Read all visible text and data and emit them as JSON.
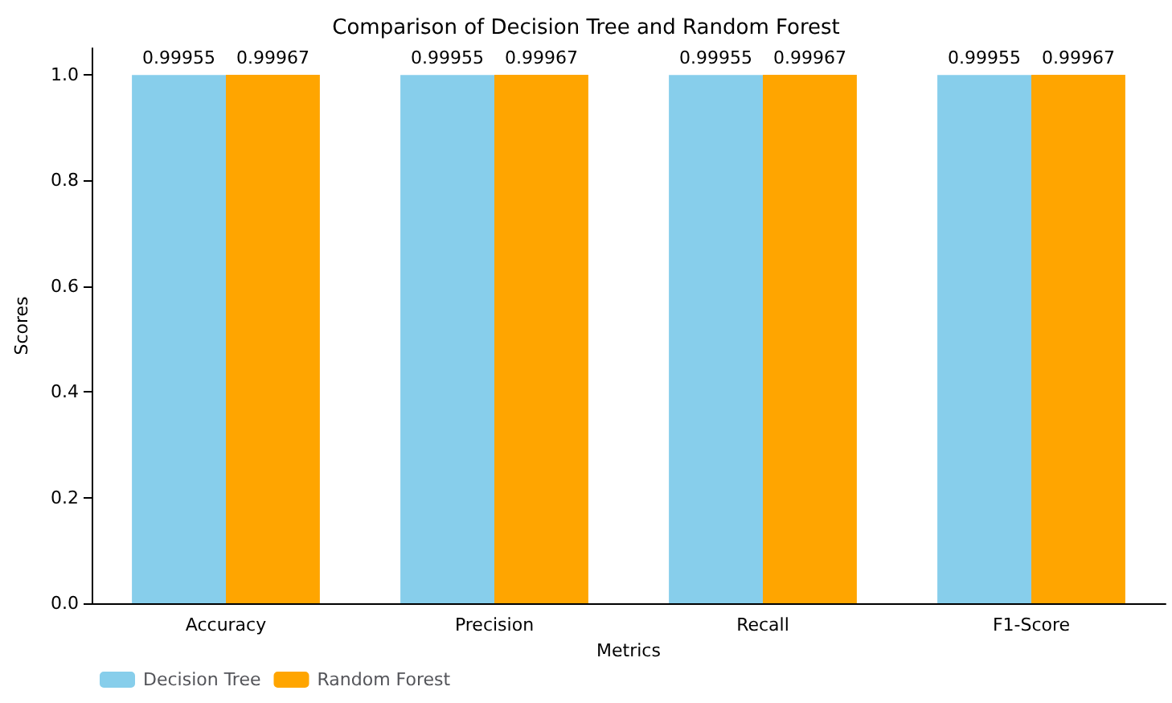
{
  "chart_data": {
    "type": "bar",
    "title": "Comparison of Decision Tree and Random Forest",
    "xlabel": "Metrics",
    "ylabel": "Scores",
    "categories": [
      "Accuracy",
      "Precision",
      "Recall",
      "F1-Score"
    ],
    "series": [
      {
        "name": "Decision Tree",
        "color": "#87ceeb",
        "values": [
          0.99955,
          0.99955,
          0.99955,
          0.99955
        ]
      },
      {
        "name": "Random Forest",
        "color": "#ffa500",
        "values": [
          0.99967,
          0.99967,
          0.99967,
          0.99967
        ]
      }
    ],
    "ylim": [
      0,
      1.05
    ],
    "yticks": [
      {
        "value": 0,
        "label": "0.0"
      },
      0.2,
      0.4,
      0.6,
      0.8,
      {
        "value": 1,
        "label": "1.0"
      }
    ],
    "data_labels": true,
    "legend": "bottom left"
  }
}
